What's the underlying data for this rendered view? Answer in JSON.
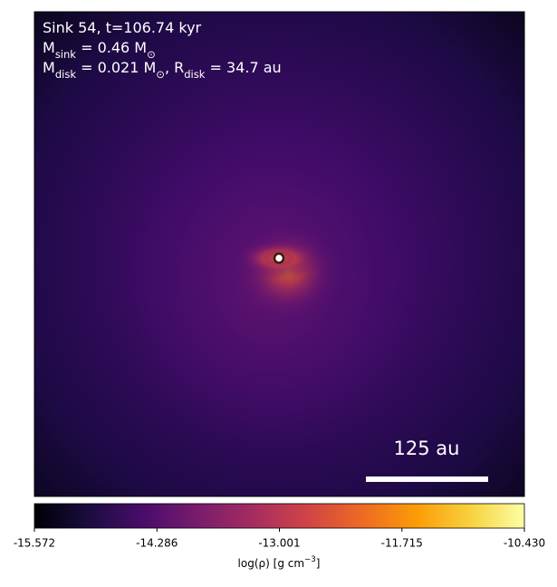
{
  "chart_data": {
    "type": "image",
    "annotations": [
      [
        {
          "t": "Sink 54, t=106.74 kyr"
        }
      ],
      [
        {
          "t": "M"
        },
        {
          "sub": "sink"
        },
        {
          "t": " = 0.46 M"
        },
        {
          "sub": "⊙"
        }
      ],
      [
        {
          "t": "M"
        },
        {
          "sub": "disk"
        },
        {
          "t": " = 0.021 M"
        },
        {
          "sub": "⊙"
        },
        {
          "t": ", R"
        },
        {
          "sub": "disk"
        },
        {
          "t": " = 34.7 au"
        }
      ]
    ],
    "scale_bar_label": "125 au",
    "colorbar": {
      "label": [
        {
          "t": "log(ρ) [g cm"
        },
        {
          "sup": "−3"
        },
        {
          "t": "]"
        }
      ],
      "xlim": [
        -15.572,
        -10.43
      ],
      "xticks": [
        -15.572,
        -14.286,
        -13.001,
        -11.715,
        {
          "value": -10.43,
          "label": "-10.430"
        }
      ],
      "colormap": [
        "#000004",
        "#1b0c41",
        "#4a0c6b",
        "#781c6d",
        "#a52c60",
        "#cf4446",
        "#ed6925",
        "#fb9b06",
        "#f7d13d",
        "#fcffa4"
      ]
    }
  }
}
